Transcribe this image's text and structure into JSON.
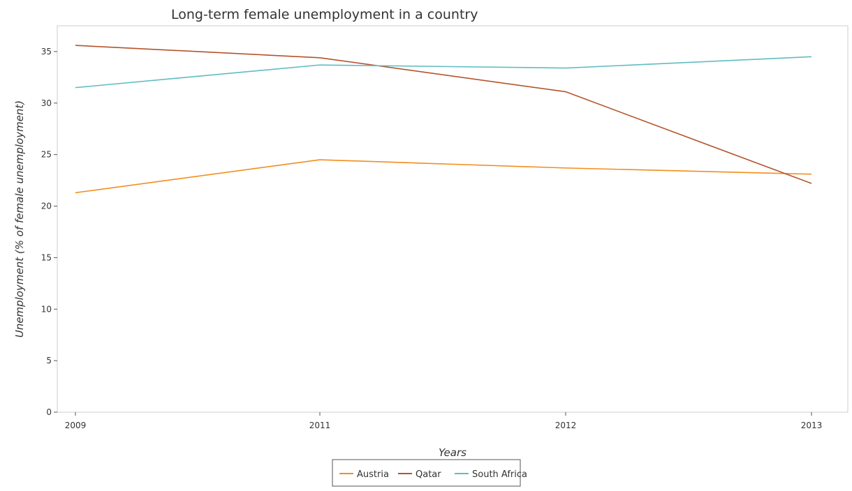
{
  "chart_data": {
    "type": "line",
    "title": "Long-term female unemployment in a country",
    "xlabel": "Years",
    "ylabel": "Unemployment (% of female unemployment)",
    "categories": [
      "2009",
      "2011",
      "2012",
      "2013"
    ],
    "ylim": [
      0,
      37.5
    ],
    "yticks": [
      "0",
      "5",
      "10",
      "15",
      "20",
      "25",
      "30",
      "35"
    ],
    "grid": false,
    "legend_position": "bottom-center",
    "series": [
      {
        "name": "Austria",
        "color": "#f28e1c",
        "values": [
          21.3,
          24.5,
          23.7,
          23.1
        ]
      },
      {
        "name": "Qatar",
        "color": "#b5532c",
        "values": [
          35.6,
          34.4,
          31.1,
          22.2
        ]
      },
      {
        "name": "South Africa",
        "color": "#5fbcc2",
        "values": [
          31.5,
          33.7,
          33.4,
          34.5
        ]
      }
    ]
  }
}
